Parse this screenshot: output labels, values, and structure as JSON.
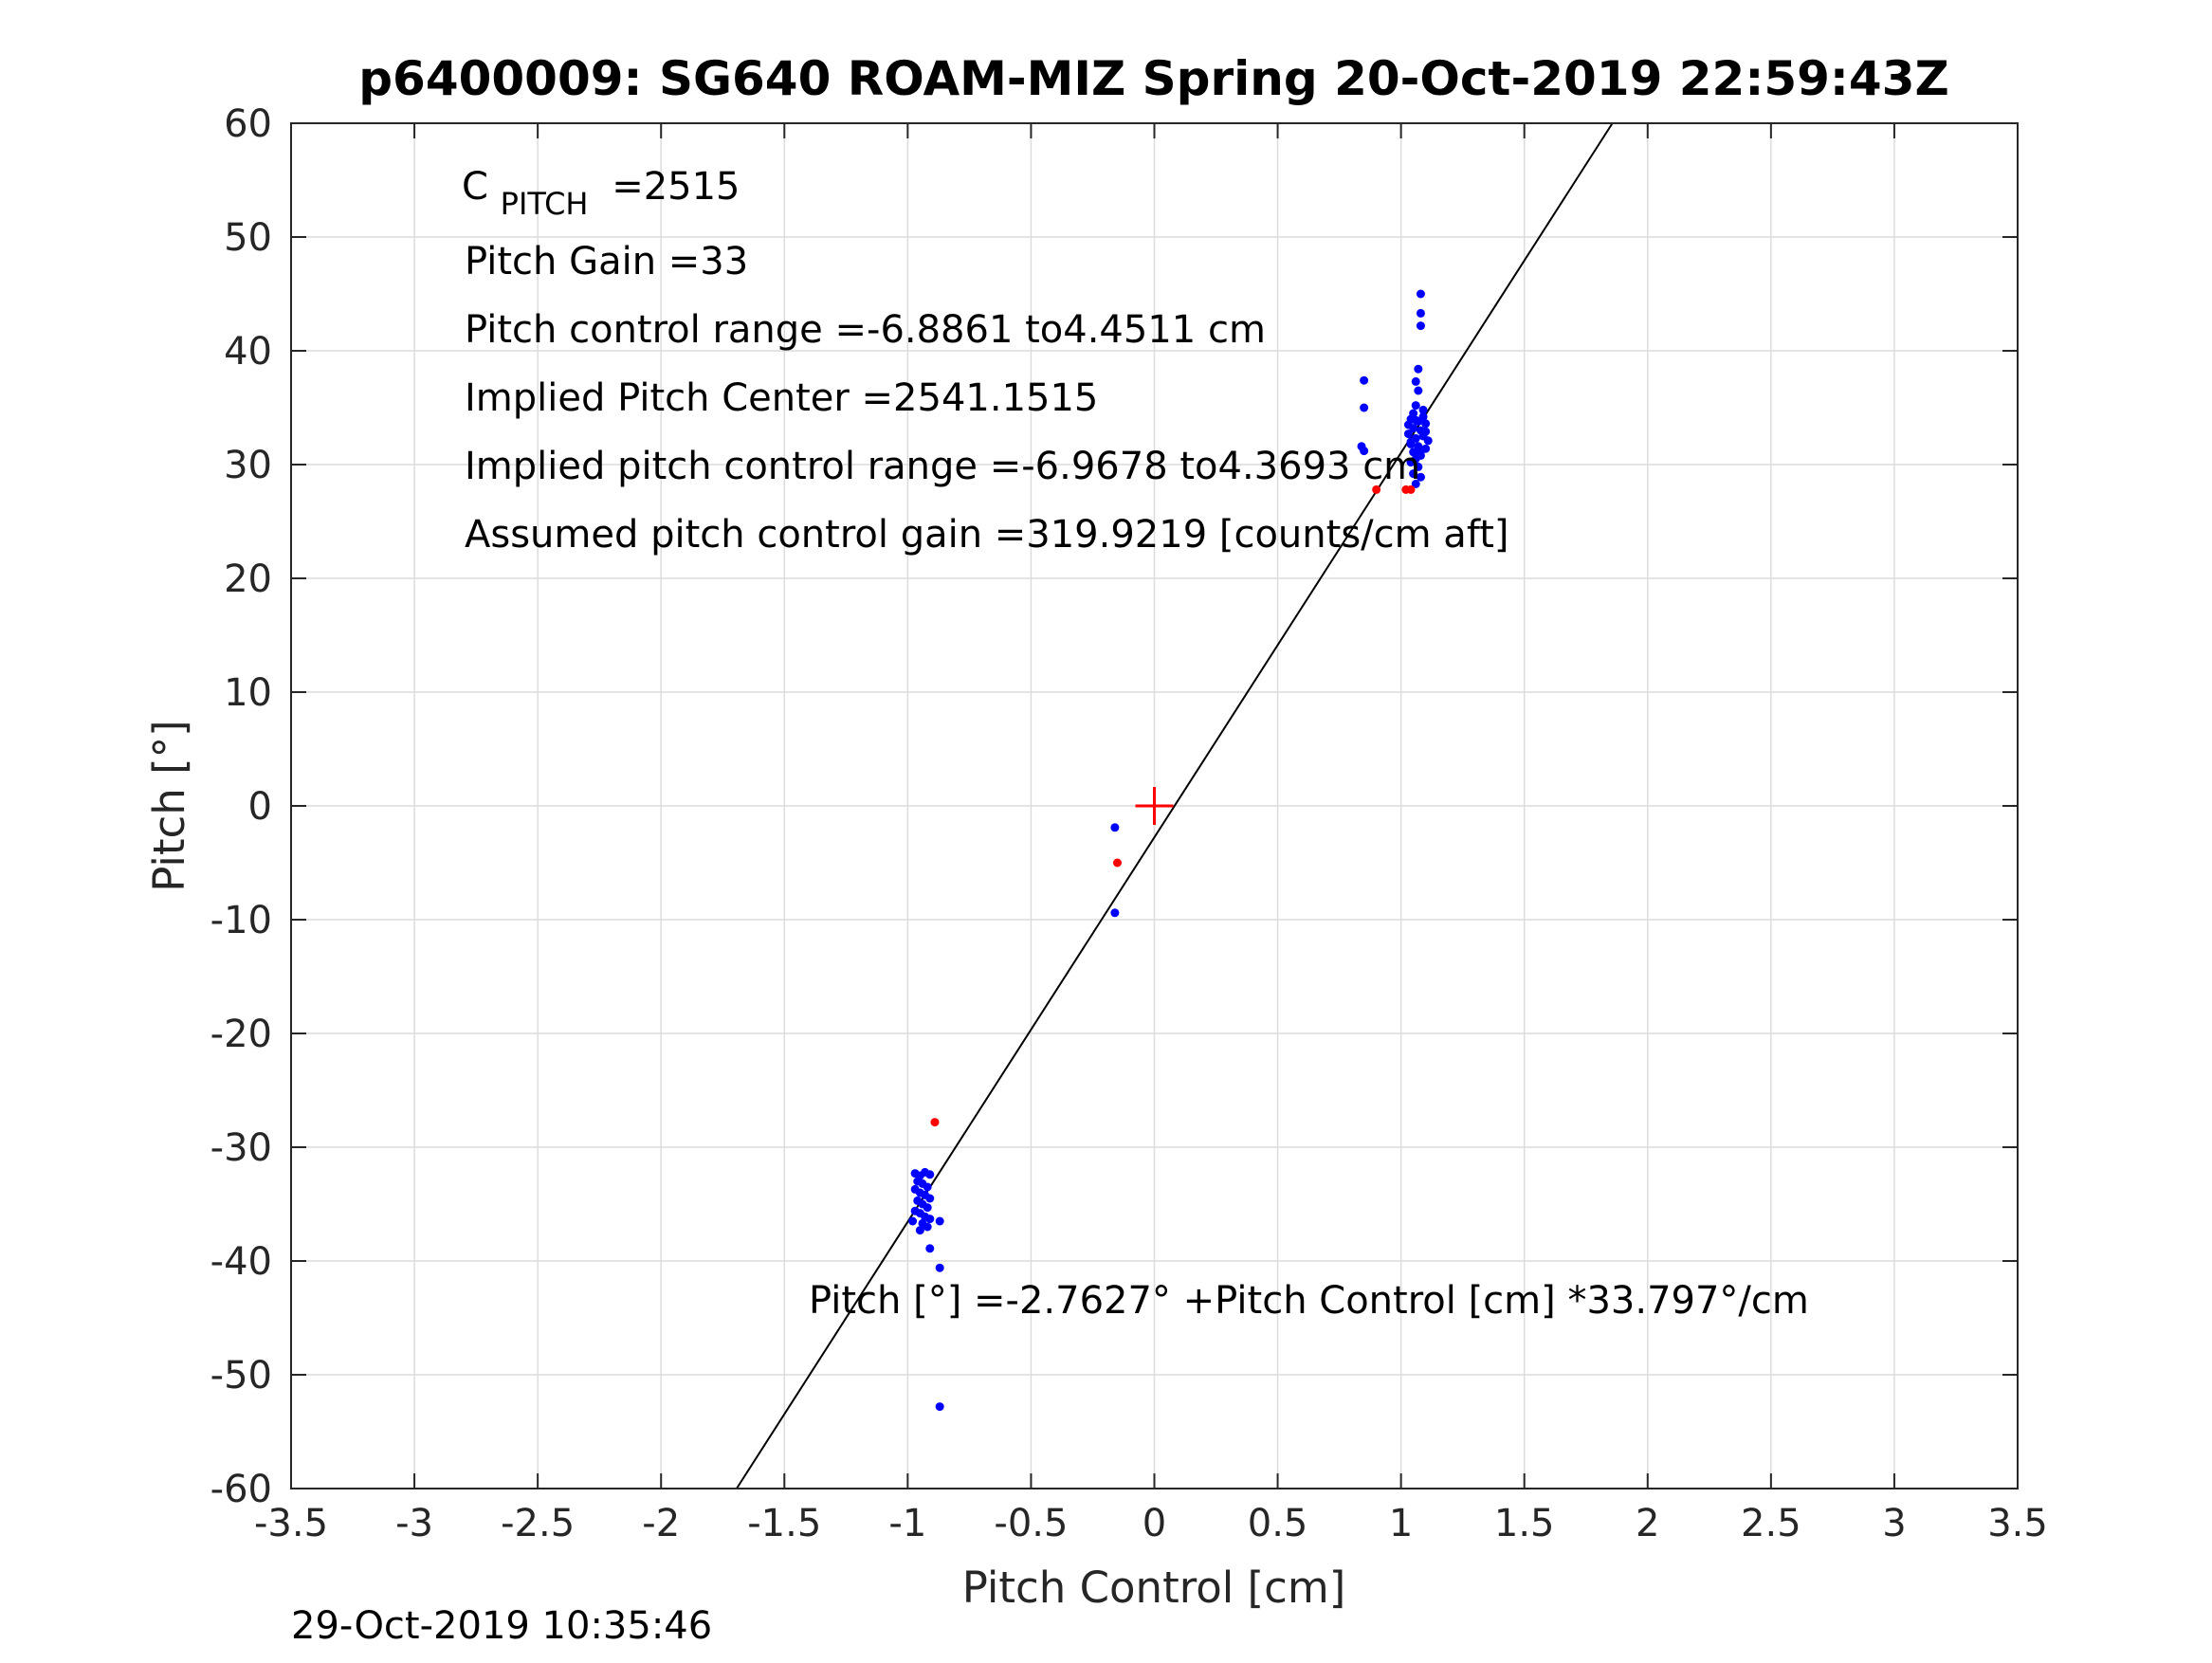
{
  "chart_data": {
    "type": "scatter",
    "title": "p6400009: SG640 ROAM-MIZ Spring 20-Oct-2019 22:59:43Z",
    "xlabel": "Pitch Control [cm]",
    "ylabel": "Pitch [°]",
    "xlim": [
      -3.5,
      3.5
    ],
    "ylim": [
      -60,
      60
    ],
    "xticks": [
      -3.5,
      -3,
      -2.5,
      -2,
      -1.5,
      -1,
      -0.5,
      0,
      0.5,
      1,
      1.5,
      2,
      2.5,
      3,
      3.5
    ],
    "xtick_labels": [
      "-3.5",
      "-3",
      "-2.5",
      "-2",
      "-1.5",
      "-1",
      "-0.5",
      "0",
      "0.5",
      "1",
      "1.5",
      "2",
      "2.5",
      "3",
      "3.5"
    ],
    "yticks": [
      -60,
      -50,
      -40,
      -30,
      -20,
      -10,
      0,
      10,
      20,
      30,
      40,
      50,
      60
    ],
    "ytick_labels": [
      "-60",
      "-50",
      "-40",
      "-30",
      "-20",
      "-10",
      "0",
      "10",
      "20",
      "30",
      "40",
      "50",
      "60"
    ],
    "grid": true,
    "annotations": {
      "c_pitch_main": "C",
      "c_pitch_sub": "PITCH",
      "c_pitch_value": "=2515",
      "pitch_gain": "Pitch Gain =33",
      "pitch_control_range": "Pitch control range =-6.8861 to4.4511 cm",
      "implied_center": "Implied Pitch Center =2541.1515",
      "implied_range": "Implied pitch control range =-6.9678 to4.3693 cm",
      "assumed_gain": "Assumed pitch control gain =319.9219 [counts/cm aft]",
      "fit_equation": "Pitch [°] =-2.7627° +Pitch Control [cm] *33.797°/cm"
    },
    "fit_line": {
      "intercept": -2.7627,
      "slope": 33.797,
      "color": "#000000"
    },
    "center_marker": {
      "x": 0,
      "y": 0,
      "color": "#ff0000"
    },
    "series": [
      {
        "color": "#0000ff",
        "points": [
          [
            1.08,
            45.0
          ],
          [
            1.08,
            43.3
          ],
          [
            1.08,
            42.2
          ],
          [
            1.07,
            38.4
          ],
          [
            1.06,
            37.3
          ],
          [
            1.07,
            36.5
          ],
          [
            1.06,
            35.2
          ],
          [
            1.05,
            34.5
          ],
          [
            1.09,
            34.8
          ],
          [
            1.04,
            34.0
          ],
          [
            1.07,
            33.8
          ],
          [
            1.1,
            33.6
          ],
          [
            1.05,
            33.2
          ],
          [
            1.08,
            33.0
          ],
          [
            1.03,
            32.7
          ],
          [
            1.09,
            32.5
          ],
          [
            1.06,
            32.3
          ],
          [
            1.11,
            32.1
          ],
          [
            1.04,
            31.8
          ],
          [
            1.07,
            31.6
          ],
          [
            1.1,
            31.4
          ],
          [
            1.05,
            31.1
          ],
          [
            1.08,
            30.8
          ],
          [
            1.06,
            30.5
          ],
          [
            1.04,
            30.2
          ],
          [
            1.07,
            29.8
          ],
          [
            1.05,
            29.2
          ],
          [
            1.08,
            28.9
          ],
          [
            1.06,
            28.3
          ],
          [
            1.09,
            34.2
          ],
          [
            1.03,
            33.5
          ],
          [
            1.1,
            32.9
          ],
          [
            1.04,
            32.0
          ],
          [
            1.08,
            31.2
          ],
          [
            1.06,
            33.9
          ],
          [
            0.85,
            37.4
          ],
          [
            0.85,
            35.0
          ],
          [
            0.84,
            31.6
          ],
          [
            0.85,
            31.2
          ],
          [
            -0.16,
            -1.9
          ],
          [
            -0.16,
            -9.4
          ],
          [
            -0.97,
            -32.3
          ],
          [
            -0.95,
            -32.5
          ],
          [
            -0.93,
            -32.2
          ],
          [
            -0.91,
            -32.4
          ],
          [
            -0.96,
            -33.0
          ],
          [
            -0.94,
            -33.2
          ],
          [
            -0.92,
            -33.5
          ],
          [
            -0.97,
            -33.7
          ],
          [
            -0.95,
            -34.0
          ],
          [
            -0.93,
            -34.2
          ],
          [
            -0.91,
            -34.5
          ],
          [
            -0.96,
            -34.7
          ],
          [
            -0.94,
            -35.0
          ],
          [
            -0.92,
            -35.3
          ],
          [
            -0.97,
            -35.6
          ],
          [
            -0.95,
            -35.8
          ],
          [
            -0.93,
            -36.1
          ],
          [
            -0.91,
            -36.3
          ],
          [
            -0.98,
            -36.5
          ],
          [
            -0.94,
            -36.7
          ],
          [
            -0.92,
            -37.0
          ],
          [
            -0.95,
            -37.3
          ],
          [
            -0.87,
            -36.5
          ],
          [
            -0.91,
            -38.9
          ],
          [
            -0.87,
            -40.6
          ],
          [
            -0.87,
            -52.8
          ]
        ]
      },
      {
        "color": "#ff0000",
        "points": [
          [
            -0.89,
            -27.8
          ],
          [
            -0.15,
            -5.0
          ],
          [
            0.9,
            27.8
          ],
          [
            1.02,
            27.8
          ],
          [
            1.04,
            27.8
          ]
        ]
      }
    ]
  },
  "footer": {
    "timestamp": "29-Oct-2019 10:35:46"
  }
}
